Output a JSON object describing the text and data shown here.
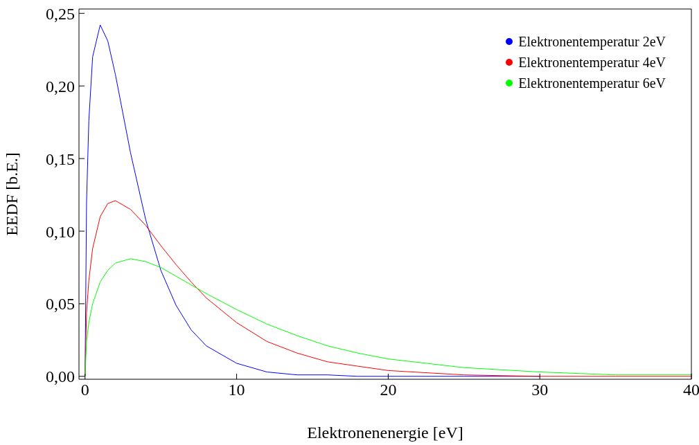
{
  "chart_data": {
    "type": "line",
    "xlabel": "Elektronenenergie [eV]",
    "ylabel": "EEDF  [b.E.]",
    "x": [
      0,
      0.1,
      0.25,
      0.5,
      1,
      1.5,
      2,
      3,
      4,
      5,
      6,
      7,
      8,
      10,
      12,
      14,
      16,
      18,
      20,
      25,
      30,
      35,
      40
    ],
    "series": [
      {
        "name": "Elektronentemperatur 2eV",
        "color": "#0000ff",
        "values": [
          0,
          0.12,
          0.176,
          0.22,
          0.242,
          0.231,
          0.208,
          0.154,
          0.108,
          0.073,
          0.049,
          0.032,
          0.021,
          0.009,
          0.003,
          0.001,
          0.001,
          0.0,
          0.0,
          0,
          0,
          null,
          null
        ]
      },
      {
        "name": "Elektronentemperatur 4eV",
        "color": "#ff0000",
        "values": [
          0,
          0.044,
          0.066,
          0.088,
          0.11,
          0.119,
          0.121,
          0.115,
          0.104,
          0.09,
          0.077,
          0.065,
          0.054,
          0.037,
          0.024,
          0.016,
          0.01,
          0.007,
          0.004,
          0.001,
          0.0,
          0.0,
          0
        ]
      },
      {
        "name": "Elektronentemperatur 6eV",
        "color": "#00ff00",
        "values": [
          0,
          0.024,
          0.037,
          0.05,
          0.065,
          0.073,
          0.078,
          0.081,
          0.079,
          0.075,
          0.069,
          0.063,
          0.057,
          0.046,
          0.036,
          0.028,
          0.021,
          0.016,
          0.012,
          0.006,
          0.003,
          0.001,
          0.001
        ]
      }
    ],
    "xlim": [
      -0.4,
      40
    ],
    "xticks": [
      0,
      10,
      20,
      30,
      40
    ],
    "ylim": [
      -0.002,
      0.253
    ],
    "yticks": [
      {
        "value": 0,
        "label": "0,00"
      },
      {
        "value": 0.05,
        "label": "0,05"
      },
      {
        "value": 0.1,
        "label": "0,10"
      },
      {
        "value": 0.15,
        "label": "0,15"
      },
      {
        "value": 0.2,
        "label": "0,20"
      },
      {
        "value": 0.25,
        "label": "0,25"
      }
    ],
    "grid": false,
    "legend": "top right",
    "marker": "none",
    "line_style": "solid"
  }
}
